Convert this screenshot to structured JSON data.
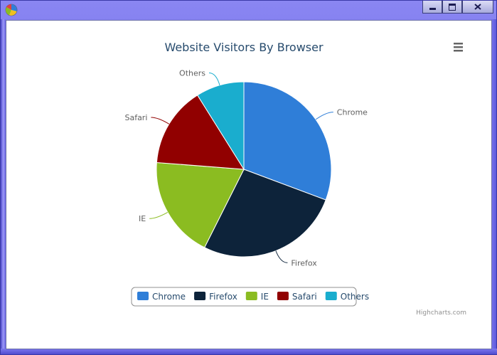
{
  "window": {
    "title": ""
  },
  "chart_data": {
    "type": "pie",
    "title": "Website Visitors By Browser",
    "categories": [
      "Chrome",
      "Firefox",
      "IE",
      "Safari",
      "Others"
    ],
    "values": [
      31,
      27,
      19,
      15,
      9
    ],
    "colors": [
      "#2f7ed8",
      "#0d233a",
      "#8bbc21",
      "#910000",
      "#1aadce"
    ],
    "legend": {
      "placement": "bottom-center",
      "items": [
        "Chrome",
        "Firefox",
        "IE",
        "Safari",
        "Others"
      ]
    },
    "credits": "Highcharts.com",
    "data_labels": true
  },
  "menu": {
    "icon": "hamburger-menu-icon"
  }
}
